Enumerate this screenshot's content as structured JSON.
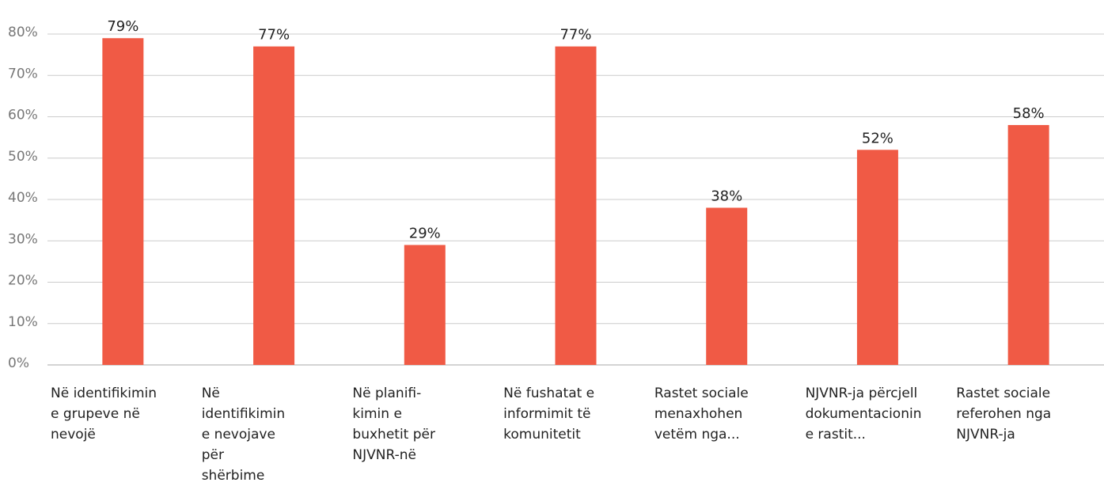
{
  "chart_data": {
    "type": "bar",
    "categories": [
      [
        "Në identifikimin",
        "e grupeve në",
        "nevojë"
      ],
      [
        "Në",
        "identifikimin",
        "e nevojave",
        "për",
        "shërbime"
      ],
      [
        "Në planifi-",
        "kimin e",
        "buxhetit për",
        "NJVNR-në"
      ],
      [
        "Në fushatat e",
        "informimit të",
        "komunitetit"
      ],
      [
        "Rastet sociale",
        "menaxhohen",
        "vetëm nga..."
      ],
      [
        "NJVNR-ja përcjell",
        "dokumentacionin",
        "e rastit..."
      ],
      [
        "Rastet sociale",
        "referohen nga",
        "NJVNR-ja"
      ]
    ],
    "values": [
      79,
      77,
      29,
      77,
      38,
      52,
      58
    ],
    "value_labels": [
      "79%",
      "77%",
      "29%",
      "77%",
      "38%",
      "52%",
      "58%"
    ],
    "color": "#f05a45",
    "ylim": [
      0,
      80
    ],
    "yticks": [
      {
        "value": 0,
        "label": "0%"
      },
      {
        "value": 10,
        "label": "10%"
      },
      {
        "value": 20,
        "label": "20%"
      },
      {
        "value": 30,
        "label": "30%"
      },
      {
        "value": 40,
        "label": "40%"
      },
      {
        "value": 50,
        "label": "50%"
      },
      {
        "value": 60,
        "label": "60%"
      },
      {
        "value": 70,
        "label": "70%"
      },
      {
        "value": 80,
        "label": "80%"
      }
    ],
    "grid": true
  }
}
